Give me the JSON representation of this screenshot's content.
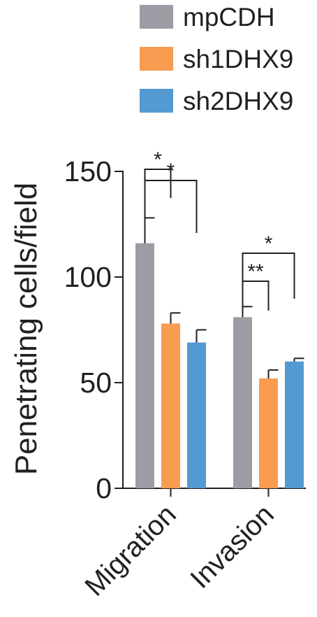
{
  "chart_data": {
    "type": "bar",
    "categories": [
      "Migration",
      "Invasion"
    ],
    "series": [
      {
        "name": "mpCDH",
        "color": "#9d9ca4",
        "values": [
          116,
          81
        ],
        "errors": [
          12,
          5
        ]
      },
      {
        "name": "sh1DHX9",
        "color": "#f89c51",
        "values": [
          78,
          52
        ],
        "errors": [
          5,
          4
        ]
      },
      {
        "name": "sh2DHX9",
        "color": "#5399d2",
        "values": [
          69,
          60
        ],
        "errors": [
          6,
          1.5
        ]
      }
    ],
    "ylabel": "Penetrating cells/field",
    "ylim": [
      0,
      150
    ],
    "yticks": [
      "0",
      "50",
      "100",
      "150"
    ],
    "legend_position": "top",
    "significance": [
      {
        "category": "Migration",
        "from": "mpCDH",
        "to": "sh1DHX9",
        "label": "*"
      },
      {
        "category": "Migration",
        "from": "mpCDH",
        "to": "sh2DHX9",
        "label": "*"
      },
      {
        "category": "Invasion",
        "from": "mpCDH",
        "to": "sh1DHX9",
        "label": "**"
      },
      {
        "category": "Invasion",
        "from": "mpCDH",
        "to": "sh2DHX9",
        "label": "*"
      }
    ]
  }
}
